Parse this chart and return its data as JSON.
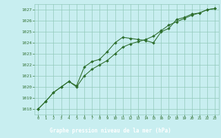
{
  "title": "Graphe pression niveau de la mer (hPa)",
  "hours": [
    0,
    1,
    2,
    3,
    4,
    5,
    6,
    7,
    8,
    9,
    10,
    11,
    12,
    13,
    14,
    15,
    16,
    17,
    18,
    19,
    20,
    21,
    22,
    23
  ],
  "series1": [
    1018.0,
    1018.7,
    1019.5,
    1020.0,
    1020.5,
    1020.1,
    1021.8,
    1022.3,
    1022.5,
    1023.2,
    1024.0,
    1024.5,
    1024.4,
    1024.3,
    1024.2,
    1024.0,
    1025.0,
    1025.3,
    1026.1,
    1026.3,
    1026.6,
    1026.7,
    1027.0,
    1027.1
  ],
  "series2": [
    1018.0,
    1018.7,
    1019.5,
    1020.0,
    1020.5,
    1020.0,
    1021.0,
    1021.6,
    1022.0,
    1022.4,
    1023.0,
    1023.6,
    1023.9,
    1024.1,
    1024.3,
    1024.6,
    1025.1,
    1025.6,
    1025.9,
    1026.2,
    1026.5,
    1026.7,
    1027.0,
    1027.1
  ],
  "ylim": [
    1017.5,
    1027.5
  ],
  "yticks": [
    1018,
    1019,
    1020,
    1021,
    1022,
    1023,
    1024,
    1025,
    1026,
    1027
  ],
  "line_color": "#2d6e2d",
  "bg_color": "#c8eef0",
  "plot_bg_color": "#c8eef0",
  "grid_color": "#90c8b8",
  "label_color": "#2d6e2d",
  "title_bg": "#336633",
  "title_fg": "#ffffff"
}
